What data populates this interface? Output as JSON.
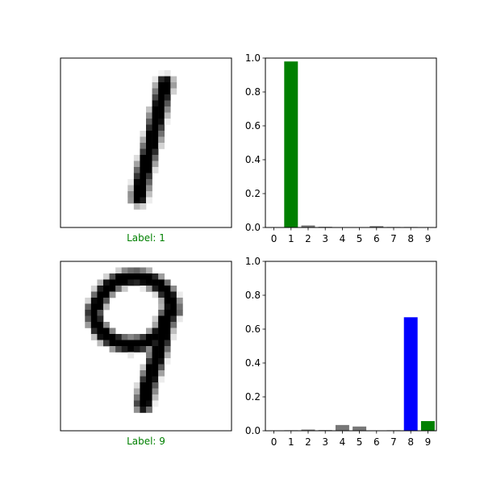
{
  "colors": {
    "correct": "#008000",
    "wrong": "#0000ff",
    "other": "#777777",
    "ink": "#000000"
  },
  "chart_data": [
    {
      "type": "image",
      "caption": "Label: 1",
      "caption_color": "#008000",
      "digit": "1"
    },
    {
      "type": "bar",
      "categories": [
        "0",
        "1",
        "2",
        "3",
        "4",
        "5",
        "6",
        "7",
        "8",
        "9"
      ],
      "values": [
        0.0,
        0.98,
        0.012,
        0.004,
        0.0,
        0.0,
        0.008,
        0.003,
        0.003,
        0.002
      ],
      "bar_colors": [
        "#777777",
        "#008000",
        "#777777",
        "#777777",
        "#777777",
        "#777777",
        "#777777",
        "#777777",
        "#777777",
        "#777777"
      ],
      "ylim": [
        0,
        1
      ],
      "yticks": [
        "0.0",
        "0.2",
        "0.4",
        "0.6",
        "0.8",
        "1.0"
      ]
    },
    {
      "type": "image",
      "caption": "Label: 9",
      "caption_color": "#008000",
      "digit": "9"
    },
    {
      "type": "bar",
      "categories": [
        "0",
        "1",
        "2",
        "3",
        "4",
        "5",
        "6",
        "7",
        "8",
        "9"
      ],
      "values": [
        0.0,
        0.003,
        0.007,
        0.004,
        0.034,
        0.025,
        0.0,
        0.003,
        0.67,
        0.057
      ],
      "bar_colors": [
        "#777777",
        "#777777",
        "#777777",
        "#777777",
        "#777777",
        "#777777",
        "#777777",
        "#777777",
        "#0000ff",
        "#008000"
      ],
      "ylim": [
        0,
        1
      ],
      "yticks": [
        "0.0",
        "0.2",
        "0.4",
        "0.6",
        "0.8",
        "1.0"
      ]
    }
  ]
}
